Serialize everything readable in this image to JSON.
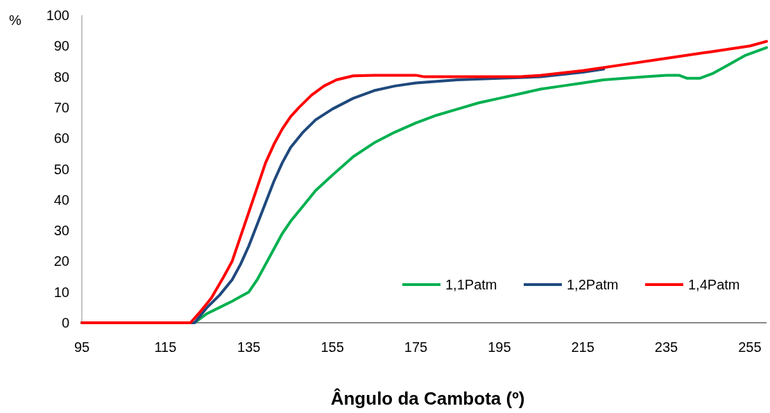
{
  "chart_data": {
    "type": "line",
    "ylabel": "%",
    "xlabel": "Ângulo da Cambota (º)",
    "xlim": [
      95,
      259
    ],
    "xticks": [
      95,
      115,
      135,
      155,
      175,
      195,
      215,
      235,
      255
    ],
    "ylim": [
      0,
      100
    ],
    "yticks": [
      0,
      10,
      20,
      30,
      40,
      50,
      60,
      70,
      80,
      90,
      100
    ],
    "grid": false,
    "legend": "bottom right",
    "marker": "none",
    "line_style": "solid",
    "series": [
      {
        "name": "1,1Patm",
        "color": "#00b050",
        "x": [
          95,
          122,
          125,
          128,
          131,
          133,
          135,
          137,
          139,
          141,
          143,
          145,
          148,
          151,
          155,
          160,
          165,
          170,
          175,
          180,
          185,
          190,
          195,
          200,
          205,
          210,
          215,
          220,
          225,
          230,
          235,
          238,
          240,
          243,
          246,
          250,
          254,
          259
        ],
        "values": [
          0,
          0,
          3,
          5,
          7,
          8.5,
          10,
          14,
          19,
          24,
          29,
          33,
          38,
          43,
          48,
          54,
          58.5,
          62,
          65,
          67.5,
          69.5,
          71.5,
          73,
          74.5,
          76,
          77,
          78,
          79,
          79.5,
          80,
          80.5,
          80.5,
          79.5,
          79.5,
          81,
          84,
          87,
          89.5
        ]
      },
      {
        "name": "1,2Patm",
        "color": "#1f497d",
        "x": [
          95,
          122,
          125,
          128,
          131,
          133,
          135,
          137,
          139,
          141,
          143,
          145,
          148,
          151,
          155,
          160,
          165,
          170,
          175,
          185,
          195,
          205,
          215,
          220
        ],
        "values": [
          0,
          0,
          5,
          9,
          14,
          19,
          25,
          32,
          39,
          46,
          52,
          57,
          62,
          66,
          69.5,
          73,
          75.5,
          77,
          78,
          79,
          79.5,
          80,
          81.5,
          82.5
        ]
      },
      {
        "name": "1,4Patm",
        "color": "#ff0000",
        "x": [
          95,
          121,
          123,
          126,
          129,
          131,
          133,
          135,
          137,
          139,
          141,
          143,
          145,
          147,
          150,
          153,
          156,
          160,
          165,
          175,
          177,
          200,
          205,
          215,
          225,
          235,
          245,
          255,
          259
        ],
        "values": [
          0,
          0,
          3,
          8,
          15,
          20,
          28,
          36,
          44,
          52,
          58,
          63,
          67,
          70,
          74,
          77,
          79,
          80.3,
          80.5,
          80.5,
          80,
          80,
          80.5,
          82,
          84,
          86,
          88,
          90,
          91.5
        ]
      }
    ]
  }
}
